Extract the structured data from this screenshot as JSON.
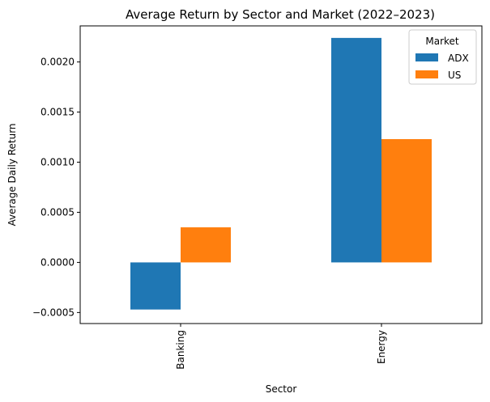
{
  "chart_data": {
    "type": "bar",
    "title": "Average Return by Sector and Market (2022–2023)",
    "xlabel": "Sector",
    "ylabel": "Average Daily Return",
    "categories": [
      "Banking",
      "Energy"
    ],
    "series": [
      {
        "name": "ADX",
        "values": [
          -0.00047,
          0.00224
        ],
        "color": "#1f77b4"
      },
      {
        "name": "US",
        "values": [
          0.00035,
          0.00123
        ],
        "color": "#ff7f0e"
      }
    ],
    "ylim": [
      -0.00061,
      0.00236
    ],
    "yticks": [
      -0.0005,
      0.0,
      0.0005,
      0.001,
      0.0015,
      0.002
    ],
    "ytick_labels": [
      "−0.0005",
      "0.0000",
      "0.0005",
      "0.0010",
      "0.0015",
      "0.0020"
    ],
    "xtick_rotation": "vertical",
    "legend": {
      "title": "Market",
      "placement": "top-right"
    },
    "grid": false
  }
}
